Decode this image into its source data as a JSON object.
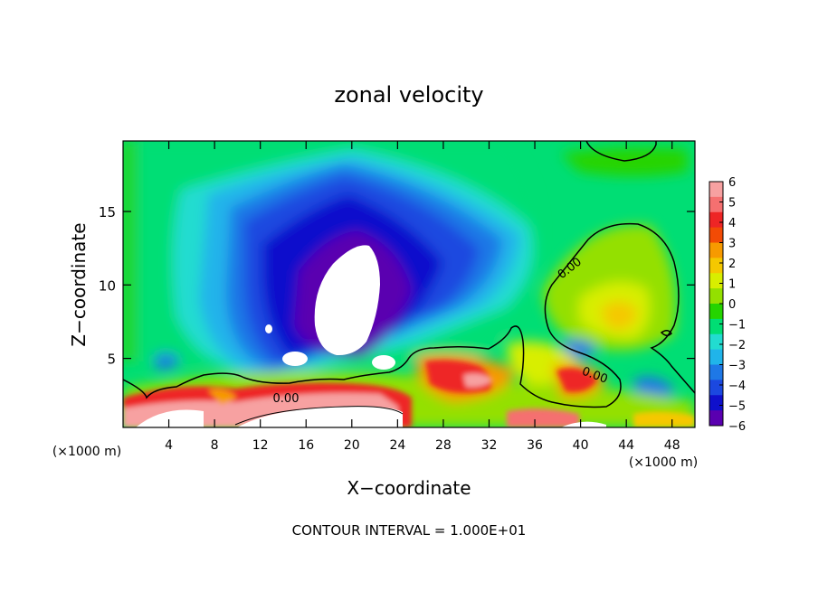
{
  "chart_data": {
    "type": "heatmap",
    "title": "zonal velocity",
    "xlabel": "X−coordinate",
    "ylabel": "Z−coordinate",
    "x_unit": "(×1000 m)",
    "x_ticks": [
      4,
      8,
      12,
      16,
      20,
      24,
      28,
      32,
      36,
      40,
      44,
      48
    ],
    "y_ticks": [
      5,
      10,
      15
    ],
    "xlim": [
      0,
      50
    ],
    "ylim": [
      0.3,
      19.8
    ],
    "footer": "CONTOUR INTERVAL = 1.000E+01",
    "contour_label": "0.00",
    "colorbar": {
      "ticks": [
        6,
        5,
        4,
        3,
        2,
        1,
        0,
        -1,
        -2,
        -3,
        -4,
        -5,
        -6
      ],
      "labels": [
        "6",
        "5",
        "4",
        "3",
        "2",
        "1",
        "0",
        "−1",
        "−2",
        "−3",
        "−4",
        "−5",
        "−6"
      ],
      "colors": [
        "#f7a1a1",
        "#f57070",
        "#ee2525",
        "#f24b05",
        "#f79a00",
        "#f5c800",
        "#d8ee00",
        "#94e000",
        "#25d400",
        "#00de74",
        "#22dcd0",
        "#20b4ea",
        "#1e78e6",
        "#1b48e0",
        "#0f10cc",
        "#5a00b0"
      ]
    }
  }
}
